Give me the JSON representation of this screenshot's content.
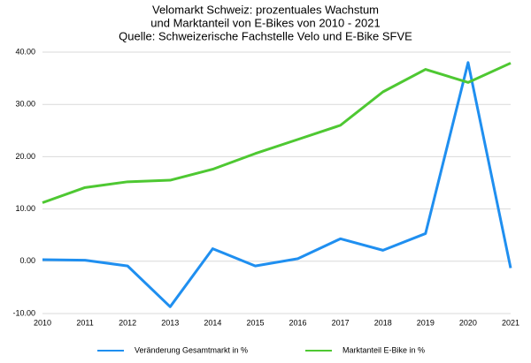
{
  "chart_data": {
    "type": "line",
    "title": [
      "Velomarkt Schweiz: prozentuales Wachstum",
      "und Marktanteil von E-Bikes von 2010 - 2021",
      "Quelle: Schweizerische Fachstelle Velo und E-Bike SFVE"
    ],
    "categories": [
      "2010",
      "2011",
      "2012",
      "2013",
      "2014",
      "2015",
      "2016",
      "2017",
      "2018",
      "2019",
      "2020",
      "2021"
    ],
    "series": [
      {
        "name": "Veränderung Gesamtmarkt in %",
        "color": "#1f8ff0",
        "values": [
          0.3,
          0.2,
          -0.9,
          -8.7,
          2.4,
          -0.9,
          0.5,
          4.3,
          2.1,
          5.3,
          38.0,
          -1.3
        ]
      },
      {
        "name": "Marktanteil E-Bike in %",
        "color": "#4ec832",
        "values": [
          11.2,
          14.1,
          15.2,
          15.5,
          17.6,
          20.6,
          23.3,
          26.0,
          32.4,
          36.7,
          34.2,
          37.9
        ]
      }
    ],
    "ylim": [
      -10,
      40
    ],
    "yticks": [
      {
        "value": -10,
        "label": "-10.00"
      },
      {
        "value": 0,
        "label": "0.00"
      },
      {
        "value": 10,
        "label": "10.00"
      },
      {
        "value": 20,
        "label": "20.00"
      },
      {
        "value": 30,
        "label": "30.00"
      },
      {
        "value": 40,
        "label": "40.00"
      }
    ],
    "grid": true,
    "legend": "bottom"
  }
}
